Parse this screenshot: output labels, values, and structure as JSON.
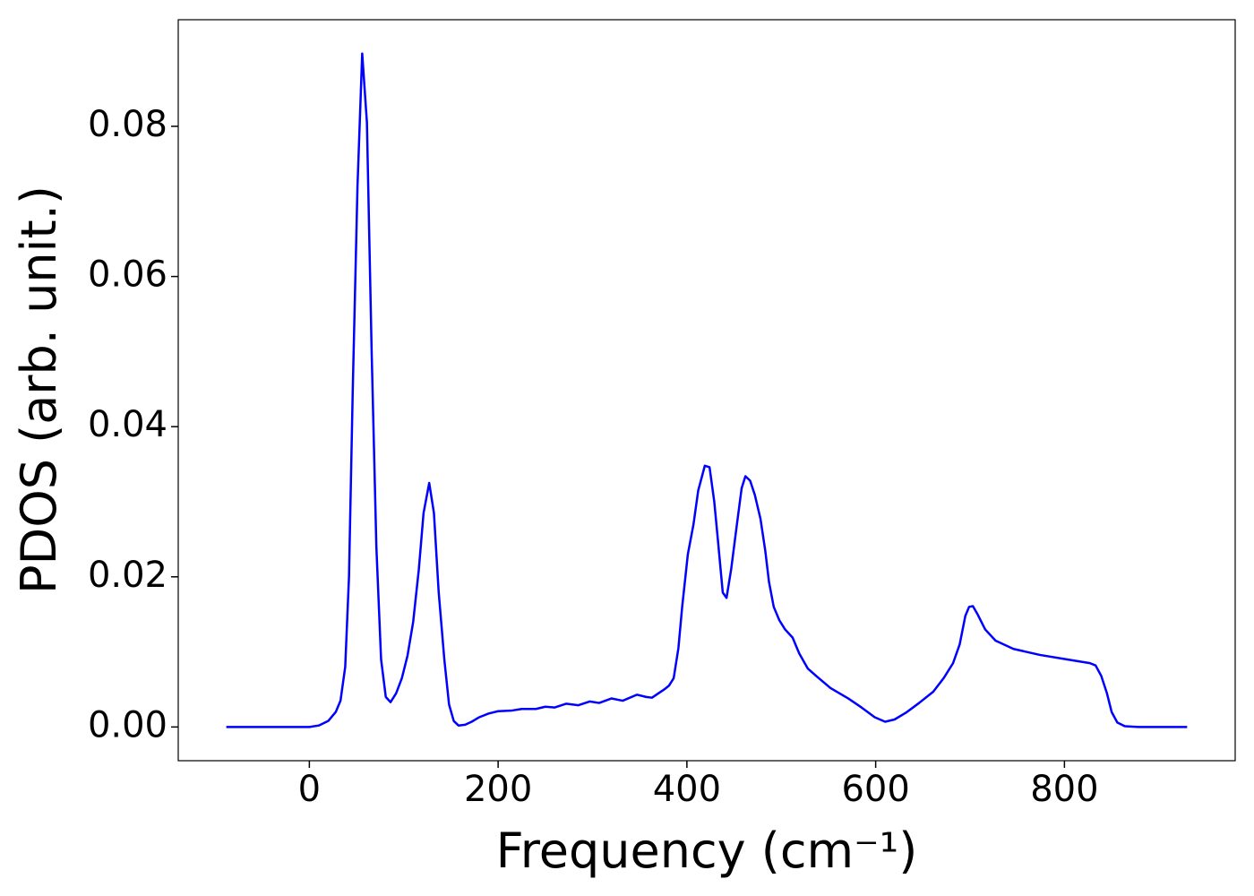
{
  "chart_data": {
    "type": "line",
    "xlabel": "Frequency (cm⁻¹)",
    "ylabel": "PDOS (arb. unit.)",
    "xlim": [
      -138.9,
      980.9
    ],
    "ylim": [
      -0.00449,
      0.0942
    ],
    "xticks": [
      0,
      200,
      400,
      600,
      800
    ],
    "yticks": [
      {
        "value": 0,
        "label": "0.00"
      },
      {
        "value": 0.02,
        "label": "0.02"
      },
      {
        "value": 0.04,
        "label": "0.04"
      },
      {
        "value": 0.06,
        "label": "0.06"
      },
      {
        "value": 0.08,
        "label": "0.08"
      }
    ],
    "series": [
      {
        "color": "#0000ff",
        "x": [
          -88,
          0,
          10,
          20,
          28,
          33,
          38,
          42,
          46,
          51,
          56,
          61,
          66,
          71,
          76,
          81,
          86,
          92,
          98,
          104,
          110,
          116,
          121,
          127,
          132,
          137,
          143,
          148,
          153,
          158,
          165,
          172,
          180,
          190,
          200,
          215,
          225,
          240,
          250,
          260,
          272,
          285,
          297,
          307,
          320,
          332,
          347,
          357,
          363,
          370,
          376,
          381,
          386,
          391,
          395,
          401,
          407,
          412,
          419,
          424,
          429,
          433,
          438,
          442,
          447,
          453,
          458,
          462,
          467,
          472,
          478,
          483,
          487,
          492,
          498,
          504,
          512,
          519,
          528,
          537,
          552,
          571,
          585,
          599,
          610,
          620,
          632,
          646,
          661,
          672,
          682,
          689,
          695,
          699,
          703,
          708,
          716,
          727,
          746,
          774,
          803,
          827,
          833,
          839,
          845,
          850,
          856,
          864,
          879,
          930
        ],
        "values": [
          0,
          0,
          0.0002,
          0.0008,
          0.002,
          0.0035,
          0.008,
          0.02,
          0.045,
          0.072,
          0.0897,
          0.0805,
          0.05,
          0.024,
          0.009,
          0.004,
          0.0033,
          0.0045,
          0.0065,
          0.0095,
          0.014,
          0.021,
          0.0285,
          0.0325,
          0.0285,
          0.018,
          0.009,
          0.003,
          0.0008,
          0.0002,
          0.0003,
          0.0007,
          0.0013,
          0.0018,
          0.0021,
          0.0022,
          0.0024,
          0.0024,
          0.0027,
          0.0026,
          0.0031,
          0.0029,
          0.0034,
          0.0032,
          0.0038,
          0.0035,
          0.0043,
          0.004,
          0.0039,
          0.0045,
          0.005,
          0.0055,
          0.0065,
          0.0105,
          0.016,
          0.023,
          0.027,
          0.0315,
          0.0348,
          0.0346,
          0.03,
          0.0247,
          0.0179,
          0.0172,
          0.0211,
          0.027,
          0.0318,
          0.0334,
          0.0328,
          0.0309,
          0.0277,
          0.0235,
          0.0193,
          0.016,
          0.0142,
          0.013,
          0.0119,
          0.0098,
          0.0078,
          0.0068,
          0.0052,
          0.0038,
          0.0026,
          0.0013,
          0.0007,
          0.001,
          0.0019,
          0.0032,
          0.0047,
          0.0065,
          0.0085,
          0.011,
          0.0148,
          0.016,
          0.0161,
          0.015,
          0.013,
          0.0115,
          0.0104,
          0.0096,
          0.009,
          0.0085,
          0.0082,
          0.0068,
          0.0045,
          0.002,
          0.0006,
          0.0001,
          0,
          0
        ]
      }
    ]
  }
}
